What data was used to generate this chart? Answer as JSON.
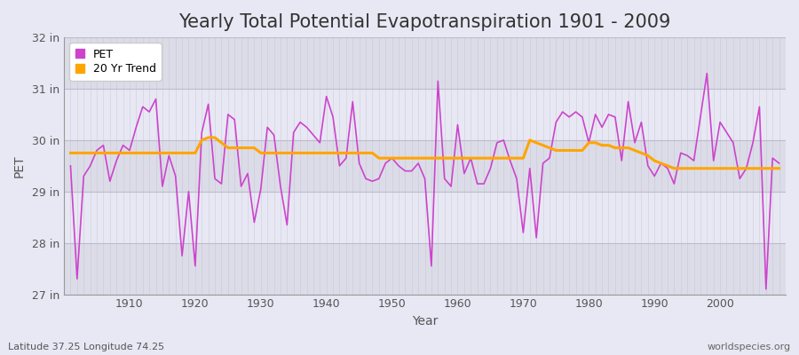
{
  "title": "Yearly Total Potential Evapotranspiration 1901 - 2009",
  "xlabel": "Year",
  "ylabel": "PET",
  "footnote_left": "Latitude 37.25 Longitude 74.25",
  "footnote_right": "worldspecies.org",
  "years": [
    1901,
    1902,
    1903,
    1904,
    1905,
    1906,
    1907,
    1908,
    1909,
    1910,
    1911,
    1912,
    1913,
    1914,
    1915,
    1916,
    1917,
    1918,
    1919,
    1920,
    1921,
    1922,
    1923,
    1924,
    1925,
    1926,
    1927,
    1928,
    1929,
    1930,
    1931,
    1932,
    1933,
    1934,
    1935,
    1936,
    1937,
    1938,
    1939,
    1940,
    1941,
    1942,
    1943,
    1944,
    1945,
    1946,
    1947,
    1948,
    1949,
    1950,
    1951,
    1952,
    1953,
    1954,
    1955,
    1956,
    1957,
    1958,
    1959,
    1960,
    1961,
    1962,
    1963,
    1964,
    1965,
    1966,
    1967,
    1968,
    1969,
    1970,
    1971,
    1972,
    1973,
    1974,
    1975,
    1976,
    1977,
    1978,
    1979,
    1980,
    1981,
    1982,
    1983,
    1984,
    1985,
    1986,
    1987,
    1988,
    1989,
    1990,
    1991,
    1992,
    1993,
    1994,
    1995,
    1996,
    1997,
    1998,
    1999,
    2000,
    2001,
    2002,
    2003,
    2004,
    2005,
    2006,
    2007,
    2008,
    2009
  ],
  "pet": [
    29.5,
    27.3,
    29.3,
    29.5,
    29.8,
    29.9,
    29.2,
    29.6,
    29.9,
    29.8,
    30.25,
    30.65,
    30.55,
    30.8,
    29.1,
    29.7,
    29.3,
    27.75,
    29.0,
    27.55,
    30.15,
    30.7,
    29.25,
    29.15,
    30.5,
    30.4,
    29.1,
    29.35,
    28.4,
    29.05,
    30.25,
    30.1,
    29.1,
    28.35,
    30.15,
    30.35,
    30.25,
    30.1,
    29.95,
    30.85,
    30.45,
    29.5,
    29.65,
    30.75,
    29.55,
    29.25,
    29.2,
    29.25,
    29.55,
    29.65,
    29.5,
    29.4,
    29.4,
    29.55,
    29.25,
    27.55,
    31.15,
    29.25,
    29.1,
    30.3,
    29.35,
    29.65,
    29.15,
    29.15,
    29.45,
    29.95,
    30.0,
    29.6,
    29.25,
    28.2,
    29.45,
    28.1,
    29.55,
    29.65,
    30.35,
    30.55,
    30.45,
    30.55,
    30.45,
    29.95,
    30.5,
    30.25,
    30.5,
    30.45,
    29.6,
    30.75,
    29.95,
    30.35,
    29.5,
    29.3,
    29.55,
    29.45,
    29.15,
    29.75,
    29.7,
    29.6,
    30.45,
    31.3,
    29.6,
    30.35,
    30.15,
    29.95,
    29.25,
    29.45,
    29.95,
    30.65,
    27.1,
    29.65,
    29.55
  ],
  "trend": [
    29.75,
    29.75,
    29.75,
    29.75,
    29.75,
    29.75,
    29.75,
    29.75,
    29.75,
    29.75,
    29.75,
    29.75,
    29.75,
    29.75,
    29.75,
    29.75,
    29.75,
    29.75,
    29.75,
    29.75,
    30.0,
    30.05,
    30.05,
    29.95,
    29.85,
    29.85,
    29.85,
    29.85,
    29.85,
    29.75,
    29.75,
    29.75,
    29.75,
    29.75,
    29.75,
    29.75,
    29.75,
    29.75,
    29.75,
    29.75,
    29.75,
    29.75,
    29.75,
    29.75,
    29.75,
    29.75,
    29.75,
    29.65,
    29.65,
    29.65,
    29.65,
    29.65,
    29.65,
    29.65,
    29.65,
    29.65,
    29.65,
    29.65,
    29.65,
    29.65,
    29.65,
    29.65,
    29.65,
    29.65,
    29.65,
    29.65,
    29.65,
    29.65,
    29.65,
    29.65,
    30.0,
    29.95,
    29.9,
    29.85,
    29.8,
    29.8,
    29.8,
    29.8,
    29.8,
    29.95,
    29.95,
    29.9,
    29.9,
    29.85,
    29.85,
    29.85,
    29.8,
    29.75,
    29.7,
    29.6,
    29.55,
    29.5,
    29.45,
    29.45,
    29.45,
    29.45,
    29.45,
    29.45,
    29.45,
    29.45,
    29.45,
    29.45,
    29.45,
    29.45,
    29.45,
    29.45,
    29.45,
    29.45,
    29.45
  ],
  "pet_color": "#CC44CC",
  "trend_color": "#FFA500",
  "bg_color_light": "#DCDCE8",
  "bg_color_dark": "#E8E8F4",
  "grid_color": "#BBBBCC",
  "ylim": [
    27.0,
    32.0
  ],
  "yticks": [
    27,
    28,
    29,
    30,
    31,
    32
  ],
  "ytick_labels": [
    "27 in",
    "28 in",
    "29 in",
    "30 in",
    "31 in",
    "32 in"
  ],
  "xlim": [
    1900,
    2010
  ],
  "xticks": [
    1910,
    1920,
    1930,
    1940,
    1950,
    1960,
    1970,
    1980,
    1990,
    2000
  ],
  "title_fontsize": 15,
  "axis_label_fontsize": 10,
  "tick_fontsize": 9,
  "legend_fontsize": 9,
  "band_edges": [
    27,
    28,
    29,
    30,
    31,
    32
  ]
}
